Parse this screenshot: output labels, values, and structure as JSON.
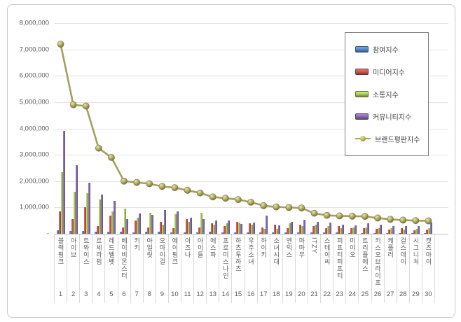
{
  "chart_data": {
    "type": "bar",
    "title": "",
    "xlabel": "",
    "ylabel": "",
    "ylim": [
      0,
      8000000
    ],
    "grid": true,
    "legend_position": "top-right",
    "y_ticks": [
      "8,000,000",
      "7,000,000",
      "6,000,000",
      "5,000,000",
      "4,000,000",
      "3,000,000",
      "2,000,000",
      "1,000,000",
      "-"
    ],
    "ranks": [
      1,
      2,
      3,
      4,
      5,
      6,
      7,
      8,
      9,
      10,
      11,
      12,
      13,
      14,
      15,
      16,
      17,
      18,
      19,
      20,
      21,
      22,
      23,
      24,
      25,
      26,
      27,
      28,
      29,
      30
    ],
    "categories": [
      "블랙핑크",
      "아이브",
      "트와이스",
      "르세라핌",
      "레드벨벳",
      "베이비몬스터",
      "키키",
      "아일릿",
      "오마이걸",
      "에이핑크",
      "이즈나",
      "아이들",
      "에스파",
      "프로미스나인",
      "하츠투하츠",
      "우주소녀",
      "하이키",
      "소녀시대",
      "엔믹스",
      "마마무",
      "ITZY",
      "스테이씨",
      "피프티피프티",
      "미야오",
      "트리플에스",
      "키스오브라이프",
      "케플러",
      "걸스데이",
      "시그니처",
      "캣츠아이"
    ],
    "series": [
      {
        "name": "참여지수",
        "type": "bar",
        "color": "#4F81BD",
        "values": [
          120000,
          100000,
          100000,
          90000,
          90000,
          80000,
          60000,
          80000,
          70000,
          60000,
          50000,
          60000,
          70000,
          50000,
          50000,
          40000,
          40000,
          50000,
          50000,
          50000,
          40000,
          40000,
          40000,
          30000,
          30000,
          30000,
          30000,
          30000,
          30000,
          30000
        ]
      },
      {
        "name": "미디어지수",
        "type": "bar",
        "color": "#C0504D",
        "values": [
          850000,
          550000,
          1000000,
          300000,
          700000,
          250000,
          500000,
          250000,
          450000,
          200000,
          550000,
          250000,
          400000,
          280000,
          450000,
          400000,
          250000,
          350000,
          220000,
          350000,
          300000,
          220000,
          300000,
          200000,
          200000,
          180000,
          150000,
          200000,
          120000,
          150000
        ]
      },
      {
        "name": "소통지수",
        "type": "bar",
        "color": "#9BBB59",
        "values": [
          2350000,
          1600000,
          1550000,
          1300000,
          850000,
          950000,
          620000,
          800000,
          350000,
          750000,
          450000,
          800000,
          350000,
          400000,
          420000,
          350000,
          180000,
          180000,
          400000,
          280000,
          350000,
          300000,
          200000,
          250000,
          250000,
          220000,
          200000,
          150000,
          180000,
          200000
        ]
      },
      {
        "name": "커뮤니티지수",
        "type": "bar",
        "color": "#8064A2",
        "values": [
          3900000,
          2600000,
          1950000,
          1500000,
          1250000,
          550000,
          780000,
          720000,
          900000,
          850000,
          600000,
          550000,
          500000,
          500000,
          380000,
          420000,
          700000,
          330000,
          450000,
          520000,
          450000,
          420000,
          350000,
          320000,
          400000,
          350000,
          300000,
          280000,
          300000,
          420000
        ]
      },
      {
        "name": "브랜드평판지수",
        "type": "line",
        "color": "#A3A05E",
        "values": [
          7200000,
          4900000,
          4850000,
          3250000,
          2900000,
          2000000,
          1950000,
          1900000,
          1800000,
          1750000,
          1650000,
          1550000,
          1400000,
          1350000,
          1300000,
          1200000,
          1070000,
          1020000,
          1000000,
          980000,
          780000,
          700000,
          680000,
          670000,
          660000,
          600000,
          550000,
          520000,
          500000,
          490000
        ]
      }
    ]
  }
}
